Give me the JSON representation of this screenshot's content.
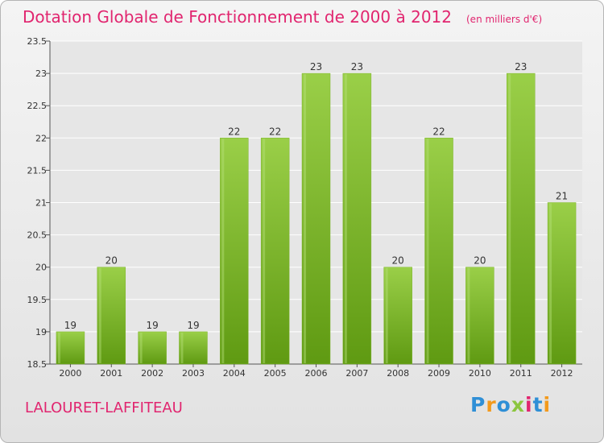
{
  "title": "Dotation Globale de Fonctionnement de 2000 à 2012",
  "unit": "(en milliers d'€)",
  "commune": "LALOURET-LAFFITEAU",
  "logo": {
    "text": "Proxiti",
    "letters": [
      "P",
      "r",
      "o",
      "x",
      "i",
      "t",
      "i"
    ]
  },
  "colors": {
    "title": "#e1256f",
    "bar_top": "#9acf48",
    "bar_bottom": "#5f9a12",
    "axis_text": "#333333",
    "grid": "#ffffff"
  },
  "chart_data": {
    "type": "bar",
    "title": "Dotation Globale de Fonctionnement de 2000 à 2012",
    "subtitle": "(en milliers d'€)",
    "xlabel": "",
    "ylabel": "",
    "categories": [
      "2000",
      "2001",
      "2002",
      "2003",
      "2004",
      "2005",
      "2006",
      "2007",
      "2008",
      "2009",
      "2010",
      "2011",
      "2012"
    ],
    "values": [
      19,
      20,
      19,
      19,
      22,
      22,
      23,
      23,
      20,
      22,
      20,
      23,
      21
    ],
    "data_labels": [
      "19",
      "20",
      "19",
      "19",
      "22",
      "22",
      "23",
      "23",
      "20",
      "22",
      "20",
      "23",
      "21"
    ],
    "ylim": [
      18.5,
      23.5
    ],
    "yticks": [
      18.5,
      19,
      19.5,
      20,
      20.5,
      21,
      21.5,
      22,
      22.5,
      23,
      23.5
    ],
    "ytick_labels": [
      "18.5",
      "19",
      "19.5",
      "20",
      "20.5",
      "21",
      "21.5",
      "22",
      "22.5",
      "23",
      "23.5"
    ],
    "grid": true,
    "legend": "none"
  }
}
